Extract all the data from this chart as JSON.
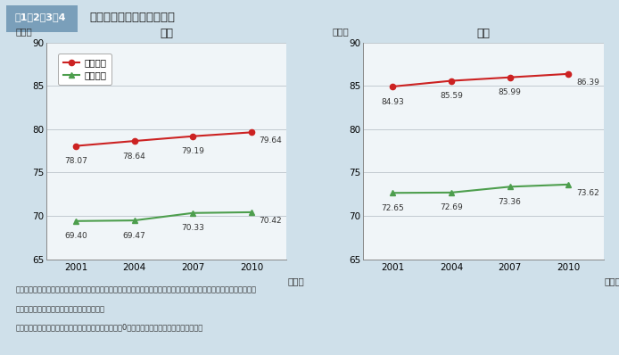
{
  "title_box": "図1－2－3－4",
  "title_text": "健康对命と平均对命の推移",
  "years": [
    2001,
    2004,
    2007,
    2010
  ],
  "male": {
    "label": "男性",
    "avg_life": [
      78.07,
      78.64,
      79.19,
      79.64
    ],
    "healthy_life": [
      69.4,
      69.47,
      70.33,
      70.42
    ]
  },
  "female": {
    "label": "女性",
    "avg_life": [
      84.93,
      85.59,
      85.99,
      86.39
    ],
    "healthy_life": [
      72.65,
      72.69,
      73.36,
      73.62
    ]
  },
  "avg_life_label": "平均对命",
  "healthy_life_label": "健康对命",
  "avg_life_color": "#cc2222",
  "healthy_life_color": "#4d9e4d",
  "ylim": [
    65,
    90
  ],
  "yticks": [
    65,
    70,
    75,
    80,
    85,
    90
  ],
  "ylabel": "（年）",
  "xlabel": "（年）",
  "bg_color": "#cfe0ea",
  "plot_bg_color": "#f0f5f8",
  "title_bg": "#7a9fba",
  "note_line1": "資料：健康对命は厚生労働科学研究費補助金「健康对命における将来予測と生活習慣病対策の費用対効果に関する研究」",
  "note_line2": "　　　平均对命は厚生労働省「簡易生命表」",
  "note_line3": "　（注）日常生活に制限のない期間が「健康对命」、0歳の平均余命が「平均对命」である。"
}
